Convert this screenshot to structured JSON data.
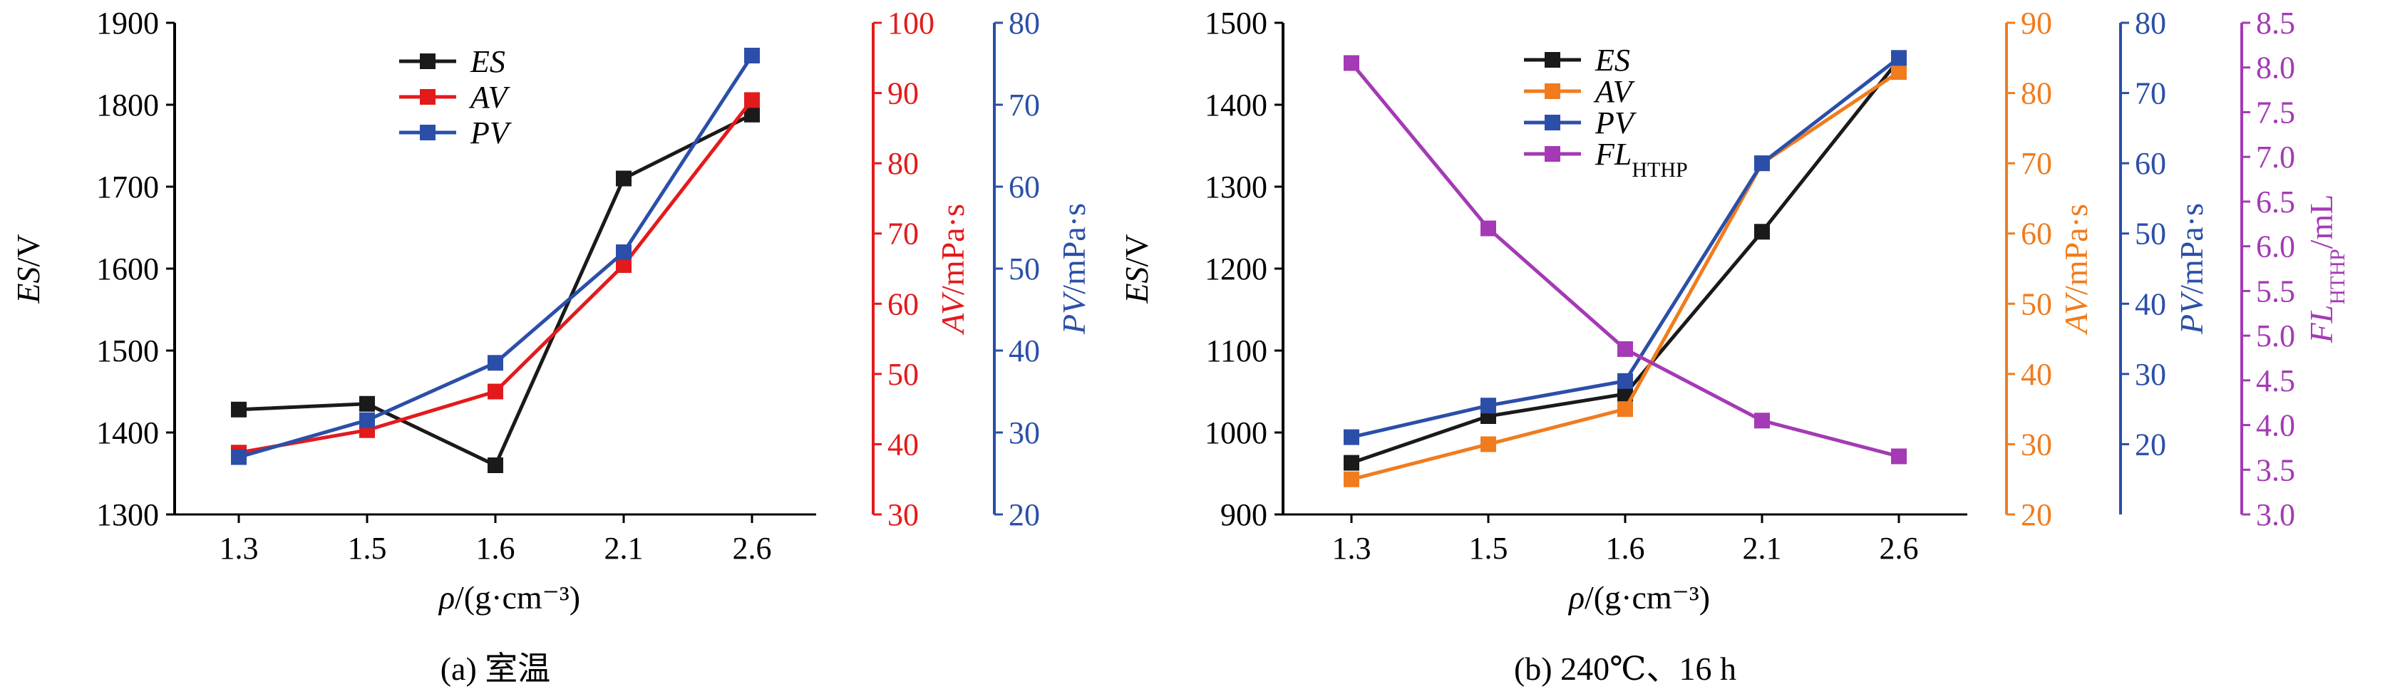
{
  "chart_data": [
    {
      "type": "line",
      "caption": "(a) 室温",
      "categories": [
        "1.3",
        "1.5",
        "1.6",
        "2.1",
        "2.6"
      ],
      "xlabel": "ρ/(g·cm⁻³)",
      "axes": [
        {
          "id": "es",
          "side": "left",
          "label_italic": "ES",
          "label_rest": "/V",
          "ylim": [
            1300,
            1900
          ],
          "ticks": [
            1300,
            1400,
            1500,
            1600,
            1700,
            1800,
            1900
          ],
          "color": "#000000"
        },
        {
          "id": "av",
          "side": "right1",
          "label_italic": "AV",
          "label_rest": "/mPa·s",
          "ylim": [
            30,
            100
          ],
          "ticks": [
            30,
            40,
            50,
            60,
            70,
            80,
            90,
            100
          ],
          "color": "#e31a1c"
        },
        {
          "id": "pv",
          "side": "right2",
          "label_italic": "PV",
          "label_rest": "/mPa·s",
          "ylim": [
            20,
            80
          ],
          "ticks": [
            20,
            30,
            40,
            50,
            60,
            70,
            80
          ],
          "color": "#2b4fa8"
        }
      ],
      "series": [
        {
          "name": "ES",
          "axis": "es",
          "color": "#1a1a1a",
          "values": [
            1428,
            1435,
            1360,
            1710,
            1788
          ]
        },
        {
          "name": "AV",
          "axis": "av",
          "color": "#e31a1c",
          "values": [
            38.8,
            42,
            47.5,
            65.5,
            89
          ]
        },
        {
          "name": "PV",
          "axis": "pv",
          "color": "#2b4fa8",
          "values": [
            27,
            31.5,
            38.5,
            52,
            76
          ]
        }
      ],
      "legend": "top-center"
    },
    {
      "type": "line",
      "caption": "(b) 240℃、16 h",
      "categories": [
        "1.3",
        "1.5",
        "1.6",
        "2.1",
        "2.6"
      ],
      "xlabel": "ρ/(g·cm⁻³)",
      "axes": [
        {
          "id": "es",
          "side": "left",
          "label_italic": "ES",
          "label_rest": "/V",
          "ylim": [
            900,
            1500
          ],
          "ticks": [
            900,
            1000,
            1100,
            1200,
            1300,
            1400,
            1500
          ],
          "color": "#000000"
        },
        {
          "id": "av",
          "side": "right1",
          "label_italic": "AV",
          "label_rest": "/mPa·s",
          "ylim": [
            20,
            90
          ],
          "ticks": [
            20,
            30,
            40,
            50,
            60,
            70,
            80,
            90
          ],
          "color": "#f07c1e"
        },
        {
          "id": "pv",
          "side": "right2",
          "label_italic": "PV",
          "label_rest": "/mPa·s",
          "ylim": [
            10,
            80
          ],
          "ticks": [
            20,
            30,
            40,
            50,
            60,
            70,
            80
          ],
          "color": "#2b4fa8"
        },
        {
          "id": "fl",
          "side": "right3",
          "label_italic": "FL",
          "label_sub": "HTHP",
          "label_rest": "/mL",
          "ylim": [
            3.0,
            8.5
          ],
          "ticks": [
            "3.0",
            "3.5",
            "4.0",
            "4.5",
            "5.0",
            "5.5",
            "6.0",
            "6.5",
            "7.0",
            "7.5",
            "8.0",
            "8.5"
          ],
          "color": "#a43ab5"
        }
      ],
      "series": [
        {
          "name": "ES",
          "axis": "es",
          "color": "#1a1a1a",
          "values": [
            963,
            1020,
            1047,
            1245,
            1455
          ]
        },
        {
          "name": "AV",
          "axis": "av",
          "color": "#f07c1e",
          "values": [
            25,
            30,
            35,
            70,
            83
          ]
        },
        {
          "name": "PV",
          "axis": "pv",
          "color": "#2b4fa8",
          "values": [
            21,
            25.5,
            29,
            60,
            75
          ]
        },
        {
          "name": "FL",
          "name_sub": "HTHP",
          "axis": "fl",
          "color": "#a43ab5",
          "values": [
            8.05,
            6.2,
            4.85,
            4.05,
            3.65
          ]
        }
      ],
      "legend": "top-center"
    }
  ]
}
